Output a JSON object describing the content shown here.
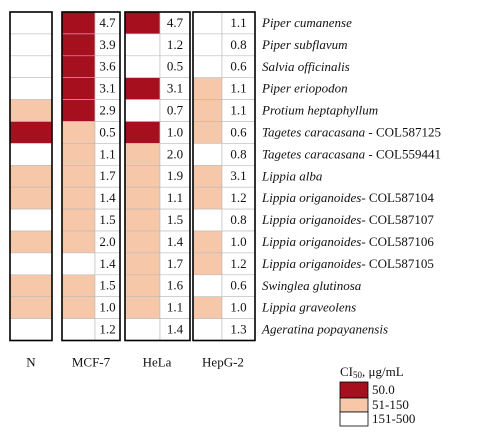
{
  "columns": [
    "N",
    "MCF-7",
    "HeLa",
    "HepG-2"
  ],
  "rows": [
    {
      "name": "Piper cumanense",
      "cells": [
        {
          "color": "#ffffff"
        },
        {
          "color": "#a50f1e",
          "value": "4.7"
        },
        {
          "color": "#a50f1e",
          "value": "4.7"
        },
        {
          "color": "#ffffff",
          "value": "1.1"
        }
      ]
    },
    {
      "name": "Piper subflavum",
      "cells": [
        {
          "color": "#ffffff"
        },
        {
          "color": "#a50f1e",
          "value": "3.9"
        },
        {
          "color": "#ffffff",
          "value": "1.2"
        },
        {
          "color": "#ffffff",
          "value": "0.8"
        }
      ]
    },
    {
      "name": "Salvia officinalis",
      "cells": [
        {
          "color": "#ffffff"
        },
        {
          "color": "#a50f1e",
          "value": "3.6"
        },
        {
          "color": "#ffffff",
          "value": "0.5"
        },
        {
          "color": "#ffffff",
          "value": "0.6"
        }
      ]
    },
    {
      "name": "Piper eriopodon",
      "cells": [
        {
          "color": "#ffffff"
        },
        {
          "color": "#a50f1e",
          "value": "3.1"
        },
        {
          "color": "#a50f1e",
          "value": "3.1"
        },
        {
          "color": "#f7c7aa",
          "value": "1.1"
        }
      ]
    },
    {
      "name": "Protium heptaphyllum",
      "cells": [
        {
          "color": "#f7c7aa"
        },
        {
          "color": "#a50f1e",
          "value": "2.9"
        },
        {
          "color": "#ffffff",
          "value": "0.7"
        },
        {
          "color": "#f7c7aa",
          "value": "1.1"
        }
      ]
    },
    {
      "name": "Tagetes caracasana",
      "suffix": " - COL587125",
      "cells": [
        {
          "color": "#a50f1e"
        },
        {
          "color": "#f7c7aa",
          "value": "0.5"
        },
        {
          "color": "#a50f1e",
          "value": "1.0"
        },
        {
          "color": "#f7c7aa",
          "value": "0.6"
        }
      ]
    },
    {
      "name": "Tagetes caracasana",
      "suffix": " - COL559441",
      "cells": [
        {
          "color": "#ffffff"
        },
        {
          "color": "#f7c7aa",
          "value": "1.1"
        },
        {
          "color": "#f7c7aa",
          "value": "2.0"
        },
        {
          "color": "#ffffff",
          "value": "0.8"
        }
      ]
    },
    {
      "name": "Lippia alba",
      "cells": [
        {
          "color": "#f7c7aa"
        },
        {
          "color": "#f7c7aa",
          "value": "1.7"
        },
        {
          "color": "#f7c7aa",
          "value": "1.9"
        },
        {
          "color": "#f7c7aa",
          "value": "3.1"
        }
      ]
    },
    {
      "name": "Lippia origanoides",
      "suffix": "- COL587104",
      "cells": [
        {
          "color": "#f7c7aa"
        },
        {
          "color": "#f7c7aa",
          "value": "1.4"
        },
        {
          "color": "#f7c7aa",
          "value": "1.1"
        },
        {
          "color": "#f7c7aa",
          "value": "1.2"
        }
      ]
    },
    {
      "name": "Lippia origanoides",
      "suffix": "- COL587107",
      "cells": [
        {
          "color": "#ffffff"
        },
        {
          "color": "#f7c7aa",
          "value": "1.5"
        },
        {
          "color": "#f7c7aa",
          "value": "1.5"
        },
        {
          "color": "#ffffff",
          "value": "0.8"
        }
      ]
    },
    {
      "name": "Lippia origanoides",
      "suffix": "- COL587106",
      "cells": [
        {
          "color": "#f7c7aa"
        },
        {
          "color": "#f7c7aa",
          "value": "2.0"
        },
        {
          "color": "#f7c7aa",
          "value": "1.4"
        },
        {
          "color": "#f7c7aa",
          "value": "1.0"
        }
      ]
    },
    {
      "name": "Lippia origanoides",
      "suffix": "- COL587105",
      "cells": [
        {
          "color": "#ffffff"
        },
        {
          "color": "#ffffff",
          "value": "1.4"
        },
        {
          "color": "#f7c7aa",
          "value": "1.7"
        },
        {
          "color": "#f7c7aa",
          "value": "1.2"
        }
      ]
    },
    {
      "name": "Swinglea glutinosa",
      "cells": [
        {
          "color": "#f7c7aa"
        },
        {
          "color": "#f7c7aa",
          "value": "1.5"
        },
        {
          "color": "#f7c7aa",
          "value": "1.6"
        },
        {
          "color": "#ffffff",
          "value": "0.6"
        }
      ]
    },
    {
      "name": "Lippia graveolens",
      "cells": [
        {
          "color": "#f7c7aa"
        },
        {
          "color": "#f7c7aa",
          "value": "1.0"
        },
        {
          "color": "#f7c7aa",
          "value": "1.1"
        },
        {
          "color": "#f7c7aa",
          "value": "1.0"
        }
      ]
    },
    {
      "name": "Ageratina popayanensis",
      "cells": [
        {
          "color": "#ffffff"
        },
        {
          "color": "#ffffff",
          "value": "1.2"
        },
        {
          "color": "#ffffff",
          "value": "1.4"
        },
        {
          "color": "#ffffff",
          "value": "1.3"
        }
      ]
    }
  ],
  "legend": {
    "title": "CI",
    "title_sub": "50",
    "title_unit": ", μg/mL",
    "entries": [
      {
        "label": "50.0",
        "color": "#a50f1e"
      },
      {
        "label": "51-150",
        "color": "#f7c7aa"
      },
      {
        "label": "151-500",
        "color": "#ffffff"
      }
    ]
  }
}
